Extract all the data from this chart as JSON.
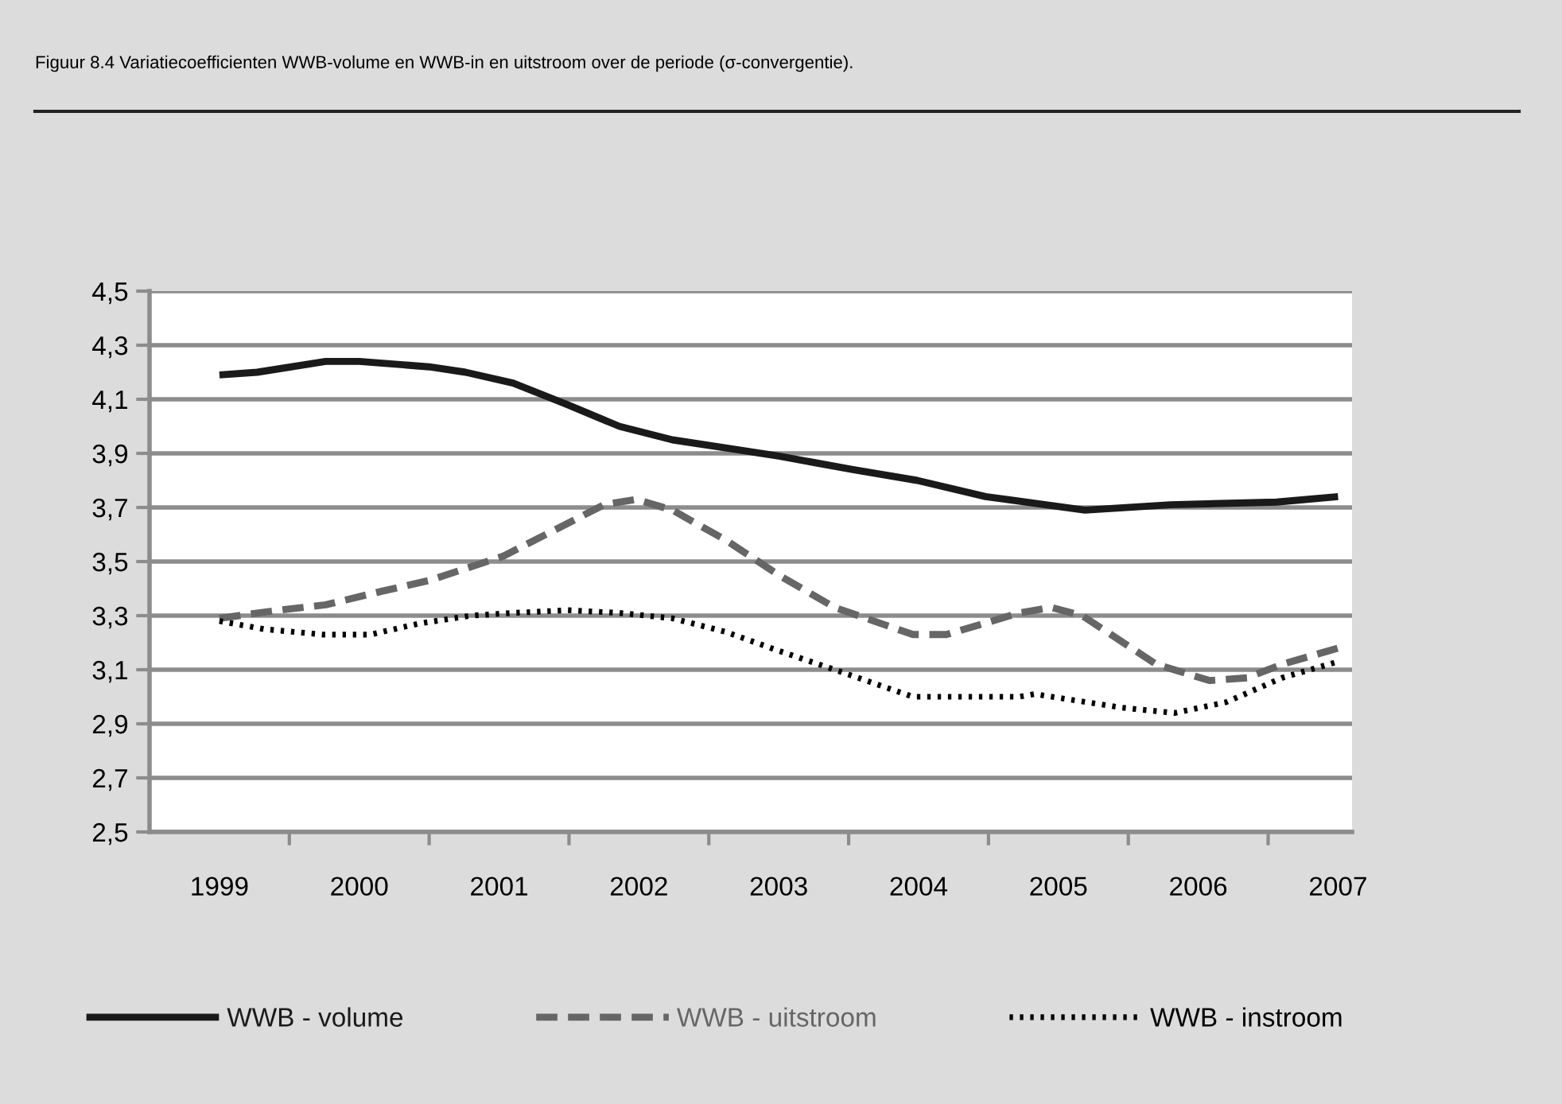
{
  "chart_data": {
    "type": "line",
    "title": "Figuur 8.4 Variatiecoefficienten WWB-volume en WWB-in en uitstroom over de periode (σ-convergentie).",
    "xlim": [
      1998.5,
      2007.1
    ],
    "xticks": [
      {
        "value": 1999,
        "label": "1999"
      },
      {
        "value": 1999.5,
        "label": null
      },
      {
        "value": 2000,
        "label": "2000"
      },
      {
        "value": 2000.5,
        "label": null
      },
      {
        "value": 2001,
        "label": "2001"
      },
      {
        "value": 2001.5,
        "label": null
      },
      {
        "value": 2002,
        "label": "2002"
      },
      {
        "value": 2002.5,
        "label": null
      },
      {
        "value": 2003,
        "label": "2003"
      },
      {
        "value": 2003.5,
        "label": null
      },
      {
        "value": 2004,
        "label": "2004"
      },
      {
        "value": 2004.5,
        "label": null
      },
      {
        "value": 2005,
        "label": "2005"
      },
      {
        "value": 2005.5,
        "label": null
      },
      {
        "value": 2006,
        "label": "2006"
      },
      {
        "value": 2006.5,
        "label": null
      },
      {
        "value": 2007,
        "label": "2007"
      }
    ],
    "ylim": [
      2.5,
      4.5
    ],
    "yticks": [
      {
        "value": 2.5,
        "label": "2,5"
      },
      {
        "value": 2.7,
        "label": "2,7"
      },
      {
        "value": 2.9,
        "label": "2,9"
      },
      {
        "value": 3.1,
        "label": "3,1"
      },
      {
        "value": 3.3,
        "label": "3,3"
      },
      {
        "value": 3.5,
        "label": "3,5"
      },
      {
        "value": 3.7,
        "label": "3,7"
      },
      {
        "value": 3.9,
        "label": "3,9"
      },
      {
        "value": 4.1,
        "label": "4,1"
      },
      {
        "value": 4.3,
        "label": "4,3"
      },
      {
        "value": 4.5,
        "label": "4,5"
      }
    ],
    "grid": "y",
    "legend": "bottom",
    "series": [
      {
        "name": "WWB - volume",
        "color": "#1a1a1a",
        "line_style": "solid",
        "x": [
          1999,
          1999.27,
          1999.76,
          2000.0,
          2000.5,
          2000.76,
          2001.1,
          2001.49,
          2001.86,
          2002.24,
          2002.62,
          2003.0,
          2003.53,
          2003.99,
          2004.48,
          2005.19,
          2005.8,
          2006.56,
          2007
        ],
        "values": [
          4.19,
          4.2,
          4.24,
          4.24,
          4.22,
          4.2,
          4.16,
          4.08,
          4.0,
          3.95,
          3.92,
          3.89,
          3.84,
          3.8,
          3.74,
          3.69,
          3.71,
          3.72,
          3.74
        ]
      },
      {
        "name": "WWB - uitstroom",
        "color": "#666666",
        "line_style": "dashed",
        "x": [
          1999,
          1999.42,
          1999.76,
          2000.16,
          2000.5,
          2001.03,
          2001.41,
          2001.75,
          2001.98,
          2002.24,
          2002.62,
          2003.0,
          2003.4,
          2003.96,
          2004.2,
          2004.72,
          2004.95,
          2005.17,
          2005.7,
          2006.08,
          2006.35,
          2006.6,
          2007
        ],
        "values": [
          3.29,
          3.32,
          3.34,
          3.39,
          3.43,
          3.52,
          3.62,
          3.71,
          3.73,
          3.69,
          3.58,
          3.45,
          3.33,
          3.23,
          3.23,
          3.31,
          3.33,
          3.3,
          3.12,
          3.06,
          3.07,
          3.12,
          3.18
        ]
      },
      {
        "name": "WWB - instroom",
        "color": "#000000",
        "line_style": "dotted",
        "x": [
          1999,
          1999.32,
          1999.74,
          2000.08,
          2000.42,
          2000.8,
          2001.1,
          2001.49,
          2001.86,
          2002.24,
          2002.62,
          2003.0,
          2003.4,
          2003.96,
          2004.72,
          2004.83,
          2005.45,
          2005.83,
          2006.2,
          2006.6,
          2007
        ],
        "values": [
          3.28,
          3.25,
          3.23,
          3.23,
          3.27,
          3.3,
          3.31,
          3.32,
          3.31,
          3.29,
          3.24,
          3.17,
          3.1,
          3.0,
          3.0,
          3.01,
          2.96,
          2.94,
          2.98,
          3.07,
          3.13
        ]
      }
    ]
  }
}
